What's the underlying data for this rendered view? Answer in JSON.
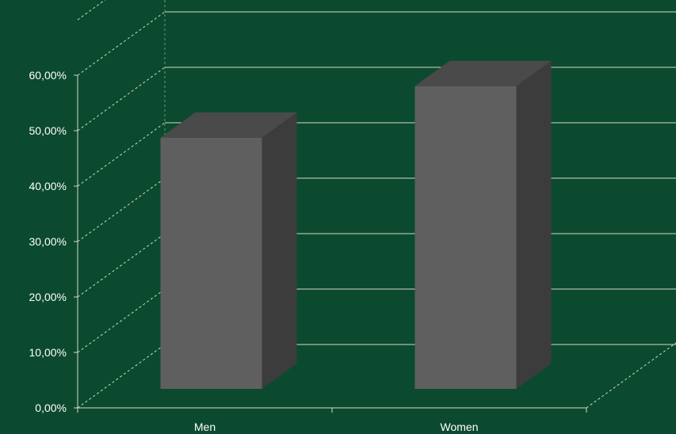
{
  "chart_data": {
    "type": "bar",
    "style": "3d-column",
    "categories": [
      "Men",
      "Women"
    ],
    "values": [
      45.3,
      54.6
    ],
    "ylim": [
      0,
      60
    ],
    "yticks": [
      0,
      10,
      20,
      30,
      40,
      50,
      60
    ],
    "ytick_labels": [
      "0,00%",
      "10,00%",
      "20,00%",
      "30,00%",
      "40,00%",
      "50,00%",
      "60,00%"
    ],
    "grid": true,
    "legend": "none",
    "colors": {
      "background": "#0b4a2f",
      "bar_front": "#5f5f5f",
      "bar_top": "#4a4a4a",
      "bar_side": "#3c3c3c",
      "grid": "#d8d8c8",
      "text": "#ffffff"
    }
  }
}
